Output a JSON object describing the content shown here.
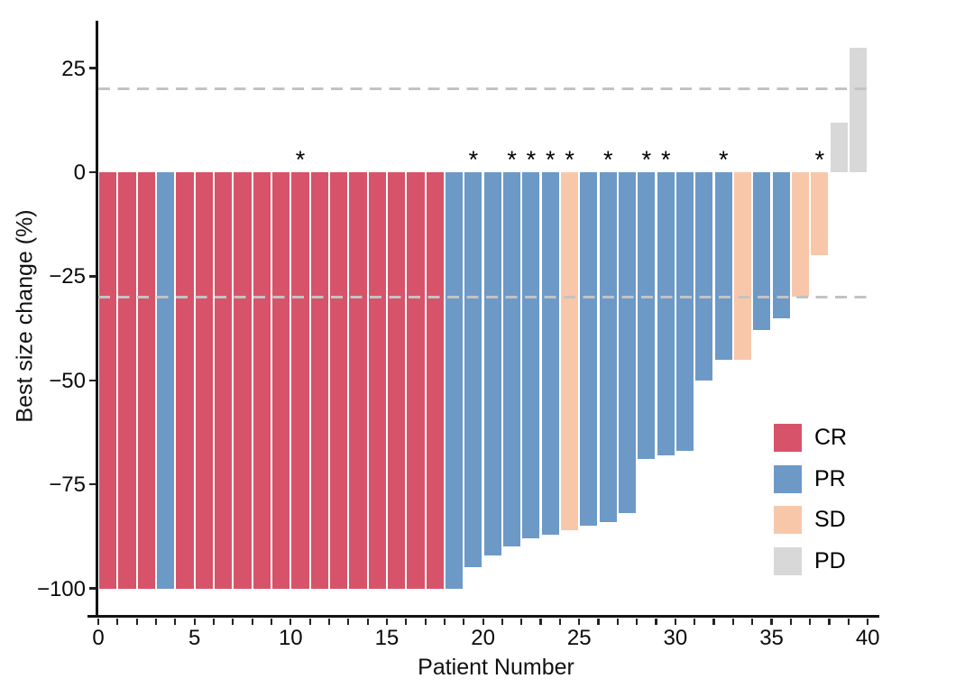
{
  "chart_data": {
    "type": "bar",
    "variant": "waterfall",
    "title": "",
    "xlabel": "Patient Number",
    "ylabel": "Best size change (%)",
    "xlim": [
      0,
      40.7
    ],
    "ylim": [
      -106.5,
      36.4
    ],
    "grid": false,
    "x_ticks_minor_every": 1,
    "x_tick_labels": [
      {
        "value": 0,
        "label": "0"
      },
      {
        "value": 5,
        "label": "5"
      },
      {
        "value": 10,
        "label": "10"
      },
      {
        "value": 15,
        "label": "15"
      },
      {
        "value": 20,
        "label": "20"
      },
      {
        "value": 25,
        "label": "25"
      },
      {
        "value": 30,
        "label": "30"
      },
      {
        "value": 35,
        "label": "35"
      },
      {
        "value": 40,
        "label": "40"
      }
    ],
    "y_tick_labels": [
      {
        "value": 25,
        "label": "25"
      },
      {
        "value": 0,
        "label": "0"
      },
      {
        "value": -25,
        "label": "−25"
      },
      {
        "value": -50,
        "label": "−50"
      },
      {
        "value": -75,
        "label": "−75"
      },
      {
        "value": -100,
        "label": "−100"
      }
    ],
    "reference_lines": [
      20,
      -30
    ],
    "star_symbol": "*",
    "colors": {
      "CR": "#d7536a",
      "PR": "#6d99c7",
      "SD": "#f8c7aa",
      "PD": "#d8d8d8",
      "reference_line": "#c3c3c3",
      "axis": "#141414"
    },
    "legend_position": "right-middle",
    "legend": [
      {
        "label": "CR",
        "response": "CR"
      },
      {
        "label": "PR",
        "response": "PR"
      },
      {
        "label": "SD",
        "response": "SD"
      },
      {
        "label": "PD",
        "response": "PD"
      }
    ],
    "bars": [
      {
        "patient": 1,
        "change": -100,
        "response": "CR",
        "star": false
      },
      {
        "patient": 2,
        "change": -100,
        "response": "CR",
        "star": false
      },
      {
        "patient": 3,
        "change": -100,
        "response": "CR",
        "star": false
      },
      {
        "patient": 4,
        "change": -100,
        "response": "PR",
        "star": false
      },
      {
        "patient": 5,
        "change": -100,
        "response": "CR",
        "star": false
      },
      {
        "patient": 6,
        "change": -100,
        "response": "CR",
        "star": false
      },
      {
        "patient": 7,
        "change": -100,
        "response": "CR",
        "star": false
      },
      {
        "patient": 8,
        "change": -100,
        "response": "CR",
        "star": false
      },
      {
        "patient": 9,
        "change": -100,
        "response": "CR",
        "star": false
      },
      {
        "patient": 10,
        "change": -100,
        "response": "CR",
        "star": false
      },
      {
        "patient": 11,
        "change": -100,
        "response": "CR",
        "star": true
      },
      {
        "patient": 12,
        "change": -100,
        "response": "CR",
        "star": false
      },
      {
        "patient": 13,
        "change": -100,
        "response": "CR",
        "star": false
      },
      {
        "patient": 14,
        "change": -100,
        "response": "CR",
        "star": false
      },
      {
        "patient": 15,
        "change": -100,
        "response": "CR",
        "star": false
      },
      {
        "patient": 16,
        "change": -100,
        "response": "CR",
        "star": false
      },
      {
        "patient": 17,
        "change": -100,
        "response": "CR",
        "star": false
      },
      {
        "patient": 18,
        "change": -100,
        "response": "CR",
        "star": false
      },
      {
        "patient": 19,
        "change": -100,
        "response": "PR",
        "star": false
      },
      {
        "patient": 20,
        "change": -95,
        "response": "PR",
        "star": true
      },
      {
        "patient": 21,
        "change": -92,
        "response": "PR",
        "star": false
      },
      {
        "patient": 22,
        "change": -90,
        "response": "PR",
        "star": true
      },
      {
        "patient": 23,
        "change": -88,
        "response": "PR",
        "star": true
      },
      {
        "patient": 24,
        "change": -87,
        "response": "PR",
        "star": true
      },
      {
        "patient": 25,
        "change": -86,
        "response": "SD",
        "star": true
      },
      {
        "patient": 26,
        "change": -85,
        "response": "PR",
        "star": false
      },
      {
        "patient": 27,
        "change": -84,
        "response": "PR",
        "star": true
      },
      {
        "patient": 28,
        "change": -82,
        "response": "PR",
        "star": false
      },
      {
        "patient": 29,
        "change": -69,
        "response": "PR",
        "star": true
      },
      {
        "patient": 30,
        "change": -68,
        "response": "PR",
        "star": true
      },
      {
        "patient": 31,
        "change": -67,
        "response": "PR",
        "star": false
      },
      {
        "patient": 32,
        "change": -50,
        "response": "PR",
        "star": false
      },
      {
        "patient": 33,
        "change": -45,
        "response": "PR",
        "star": true
      },
      {
        "patient": 34,
        "change": -45,
        "response": "SD",
        "star": false
      },
      {
        "patient": 35,
        "change": -38,
        "response": "PR",
        "star": false
      },
      {
        "patient": 36,
        "change": -35,
        "response": "PR",
        "star": false
      },
      {
        "patient": 37,
        "change": -30,
        "response": "SD",
        "star": false
      },
      {
        "patient": 38,
        "change": -20,
        "response": "SD",
        "star": true
      },
      {
        "patient": 39,
        "change": 12,
        "response": "PD",
        "star": false
      },
      {
        "patient": 40,
        "change": 30,
        "response": "PD",
        "star": false
      }
    ]
  }
}
